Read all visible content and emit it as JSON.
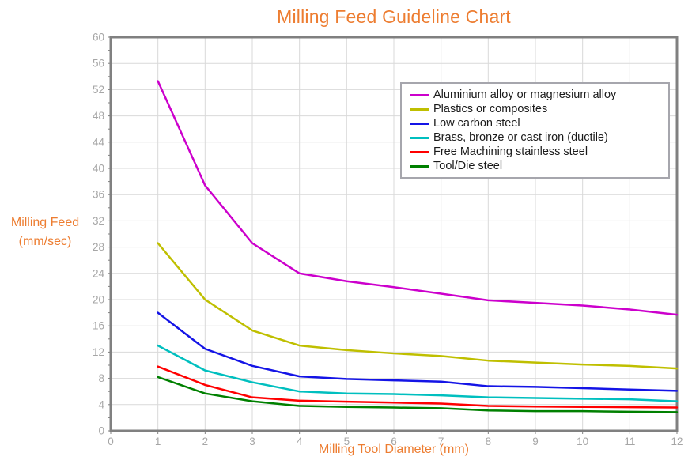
{
  "title": "Milling Feed Guideline Chart",
  "y_axis_title_line1": "Milling Feed",
  "y_axis_title_line2": "(mm/sec)",
  "x_axis_title": "Milling Tool Diameter (mm)",
  "colors": {
    "title": "#ED7D31",
    "axis_title": "#ED7D31",
    "tick_label": "#A6A6A6",
    "gridline": "#D9D9D9",
    "plot_border": "#808080",
    "tick_mark": "#808080",
    "legend_border": "#A6A6AD",
    "background": "#FFFFFF"
  },
  "chart_data": {
    "type": "line",
    "title": "Milling Feed Guideline Chart",
    "xlabel": "Milling Tool Diameter (mm)",
    "ylabel": "Milling Feed (mm/sec)",
    "xlim": [
      0,
      12
    ],
    "ylim": [
      0,
      60
    ],
    "x_ticks": [
      0,
      1,
      2,
      3,
      4,
      5,
      6,
      7,
      8,
      9,
      10,
      11,
      12
    ],
    "y_ticks": [
      0,
      4,
      8,
      12,
      16,
      20,
      24,
      28,
      32,
      36,
      40,
      44,
      48,
      52,
      56,
      60
    ],
    "grid": true,
    "legend_position": "upper-right-inside",
    "x": [
      1,
      2,
      3,
      4,
      5,
      6,
      7,
      8,
      9,
      10,
      11,
      12
    ],
    "series": [
      {
        "name": "Aluminium alloy or magnesium alloy",
        "color": "#CC00CC",
        "values": [
          53.3,
          37.4,
          28.6,
          24.0,
          22.8,
          21.9,
          20.9,
          19.9,
          19.5,
          19.1,
          18.5,
          17.7
        ]
      },
      {
        "name": "Plastics or composites",
        "color": "#BFBF00",
        "values": [
          28.6,
          20.0,
          15.3,
          13.0,
          12.3,
          11.8,
          11.4,
          10.7,
          10.4,
          10.1,
          9.9,
          9.5
        ]
      },
      {
        "name": "Low carbon steel",
        "color": "#1414E6",
        "values": [
          18.0,
          12.5,
          9.9,
          8.3,
          7.9,
          7.7,
          7.5,
          6.8,
          6.7,
          6.5,
          6.3,
          6.1
        ]
      },
      {
        "name": "Brass, bronze or cast iron (ductile)",
        "color": "#00BFBF",
        "values": [
          13.0,
          9.2,
          7.4,
          6.0,
          5.7,
          5.6,
          5.4,
          5.1,
          5.0,
          4.9,
          4.8,
          4.5
        ]
      },
      {
        "name": "Free Machining stainless steel",
        "color": "#FF0000",
        "values": [
          9.8,
          7.0,
          5.1,
          4.6,
          4.45,
          4.3,
          4.15,
          3.8,
          3.7,
          3.65,
          3.6,
          3.55
        ]
      },
      {
        "name": "Tool/Die steel",
        "color": "#008000",
        "values": [
          8.2,
          5.7,
          4.5,
          3.8,
          3.65,
          3.55,
          3.45,
          3.1,
          3.0,
          3.0,
          2.9,
          2.85
        ]
      }
    ]
  }
}
